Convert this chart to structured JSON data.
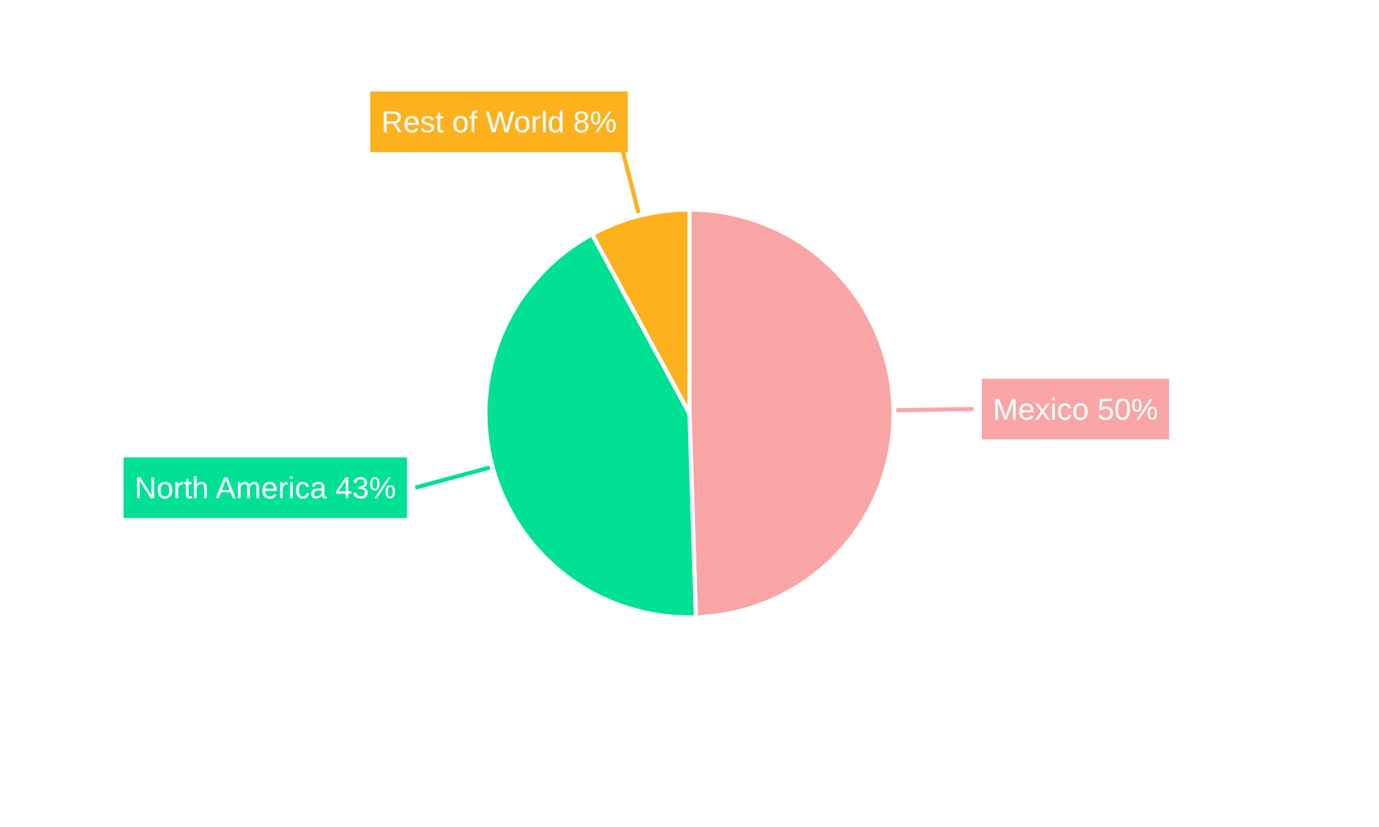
{
  "chart_data": {
    "type": "pie",
    "categories": [
      "Mexico",
      "North America",
      "Rest of World"
    ],
    "values": [
      50,
      43,
      8
    ],
    "colors": [
      "#f9a5a6",
      "#00e194",
      "#fdb11d"
    ],
    "value_labels": [
      "50%",
      "43%",
      "8%"
    ]
  }
}
